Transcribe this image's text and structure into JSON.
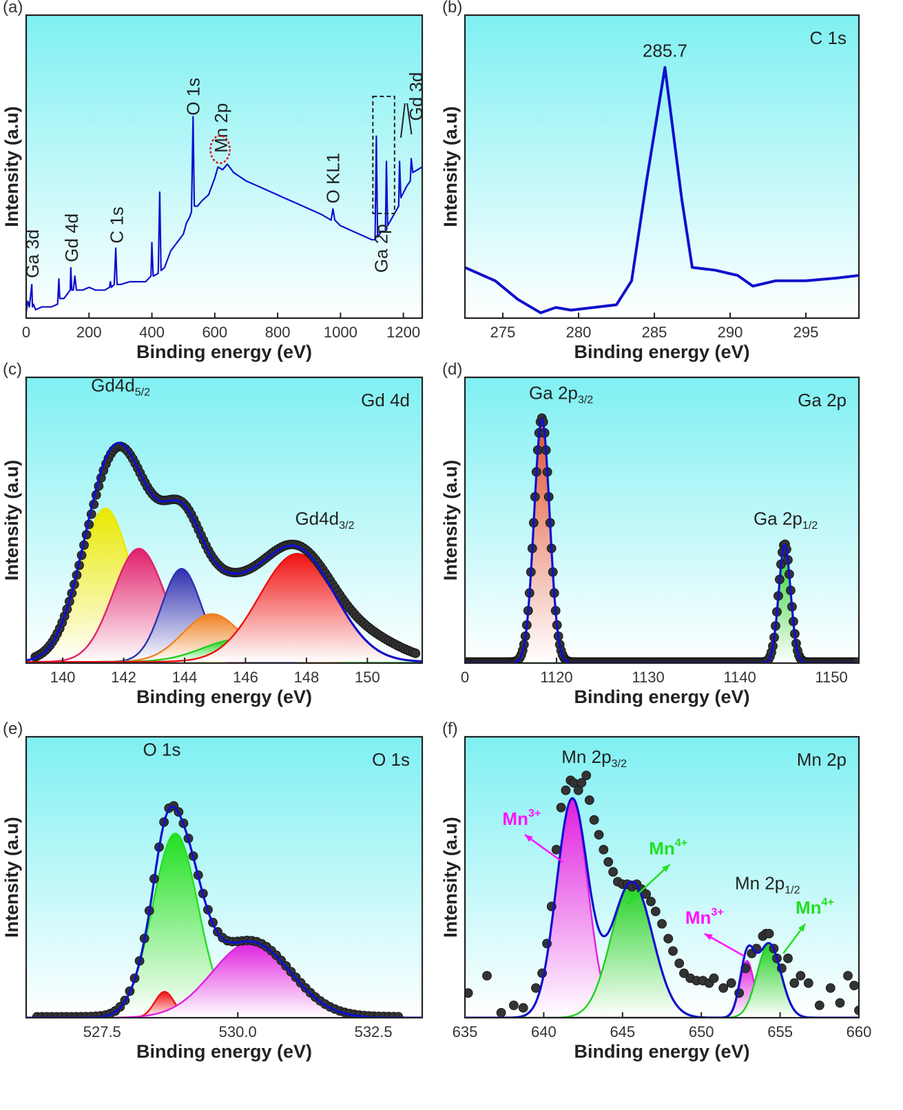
{
  "figure": {
    "description_panels": [
      "a",
      "b",
      "c",
      "d",
      "e",
      "f"
    ]
  },
  "chart_data": [
    {
      "panel": "(a)",
      "type": "line",
      "title": "",
      "xlabel": "Binding energy (eV)",
      "ylabel": "Intensity (a.u)",
      "xlim": [
        0,
        1260
      ],
      "ylim": [
        0,
        1
      ],
      "xticks": [
        0,
        200,
        400,
        600,
        800,
        1000,
        1200
      ],
      "xtick_labels": [
        "0",
        "200",
        "400",
        "600",
        "800",
        "1000",
        "1200"
      ],
      "grid": false,
      "series": [
        {
          "color": "#1010cc",
          "points": [
            [
              0,
              0.02
            ],
            [
              5,
              0.06
            ],
            [
              10,
              0.04
            ],
            [
              18,
              0.12
            ],
            [
              20,
              0.04
            ],
            [
              23,
              0.05
            ],
            [
              30,
              0.03
            ],
            [
              50,
              0.04
            ],
            [
              80,
              0.04
            ],
            [
              100,
              0.05
            ],
            [
              104,
              0.14
            ],
            [
              107,
              0.07
            ],
            [
              120,
              0.07
            ],
            [
              140,
              0.1
            ],
            [
              142,
              0.18
            ],
            [
              145,
              0.1
            ],
            [
              150,
              0.1
            ],
            [
              155,
              0.15
            ],
            [
              160,
              0.1
            ],
            [
              180,
              0.1
            ],
            [
              200,
              0.11
            ],
            [
              220,
              0.1
            ],
            [
              250,
              0.1
            ],
            [
              265,
              0.11
            ],
            [
              268,
              0.13
            ],
            [
              271,
              0.11
            ],
            [
              280,
              0.12
            ],
            [
              285,
              0.25
            ],
            [
              289,
              0.12
            ],
            [
              300,
              0.12
            ],
            [
              330,
              0.13
            ],
            [
              350,
              0.13
            ],
            [
              380,
              0.13
            ],
            [
              397,
              0.15
            ],
            [
              400,
              0.27
            ],
            [
              404,
              0.15
            ],
            [
              420,
              0.16
            ],
            [
              425,
              0.45
            ],
            [
              429,
              0.17
            ],
            [
              440,
              0.18
            ],
            [
              460,
              0.24
            ],
            [
              480,
              0.27
            ],
            [
              500,
              0.3
            ],
            [
              510,
              0.34
            ],
            [
              520,
              0.36
            ],
            [
              526,
              0.38
            ],
            [
              531,
              0.72
            ],
            [
              535,
              0.4
            ],
            [
              545,
              0.4
            ],
            [
              560,
              0.42
            ],
            [
              580,
              0.44
            ],
            [
              600,
              0.5
            ],
            [
              610,
              0.54
            ],
            [
              625,
              0.53
            ],
            [
              640,
              0.55
            ],
            [
              660,
              0.52
            ],
            [
              700,
              0.49
            ],
            [
              740,
              0.47
            ],
            [
              780,
              0.45
            ],
            [
              820,
              0.43
            ],
            [
              860,
              0.41
            ],
            [
              900,
              0.39
            ],
            [
              940,
              0.37
            ],
            [
              970,
              0.35
            ],
            [
              976,
              0.39
            ],
            [
              982,
              0.35
            ],
            [
              1000,
              0.33
            ],
            [
              1040,
              0.31
            ],
            [
              1080,
              0.29
            ],
            [
              1100,
              0.28
            ],
            [
              1110,
              0.28
            ],
            [
              1114,
              0.65
            ],
            [
              1118,
              0.29
            ],
            [
              1130,
              0.31
            ],
            [
              1143,
              0.31
            ],
            [
              1146,
              0.56
            ],
            [
              1150,
              0.33
            ],
            [
              1170,
              0.37
            ],
            [
              1185,
              0.4
            ],
            [
              1188,
              0.56
            ],
            [
              1192,
              0.43
            ],
            [
              1210,
              0.47
            ],
            [
              1222,
              0.49
            ],
            [
              1225,
              0.57
            ],
            [
              1230,
              0.52
            ],
            [
              1245,
              0.53
            ],
            [
              1260,
              0.54
            ]
          ]
        }
      ],
      "annotations": [
        {
          "text": "Ga 3d",
          "x": 20,
          "y": 0.15,
          "rotate": true
        },
        {
          "text": "Gd 4d",
          "x": 145,
          "y": 0.21,
          "rotate": true
        },
        {
          "text": "C 1s",
          "x": 288,
          "y": 0.28,
          "rotate": true
        },
        {
          "text": "O 1s",
          "x": 531,
          "y": 0.76,
          "rotate": true
        },
        {
          "text": "Mn 2p",
          "x": 620,
          "y": 0.62,
          "rotate": true
        },
        {
          "text": "O KL1",
          "x": 976,
          "y": 0.43,
          "rotate": true
        },
        {
          "text": "Ga 2p",
          "x": 1130,
          "y": 0.17,
          "rotate": true
        },
        {
          "text": "Gd 3d",
          "x": 1240,
          "y": 0.74,
          "rotate": true
        }
      ]
    },
    {
      "panel": "(b)",
      "type": "line",
      "title": "C 1s",
      "xlabel": "Binding energy (eV)",
      "ylabel": "Intensity (a.u)",
      "xlim": [
        272.5,
        298.5
      ],
      "ylim": [
        0,
        1
      ],
      "xticks": [
        275,
        280,
        285,
        290,
        295
      ],
      "xtick_labels": [
        "275",
        "280",
        "285",
        "290",
        "295"
      ],
      "grid": false,
      "series": [
        {
          "color": "#1010cc",
          "points": [
            [
              272.5,
              0.19
            ],
            [
              274.5,
              0.14
            ],
            [
              276,
              0.07
            ],
            [
              277.5,
              0.02
            ],
            [
              278.5,
              0.04
            ],
            [
              279.5,
              0.03
            ],
            [
              281,
              0.04
            ],
            [
              282.5,
              0.05
            ],
            [
              283.5,
              0.14
            ],
            [
              284.5,
              0.52
            ],
            [
              285.7,
              0.94
            ],
            [
              286.8,
              0.45
            ],
            [
              287.5,
              0.19
            ],
            [
              289,
              0.18
            ],
            [
              290.5,
              0.16
            ],
            [
              291.5,
              0.12
            ],
            [
              293,
              0.14
            ],
            [
              295,
              0.14
            ],
            [
              297,
              0.15
            ],
            [
              298.5,
              0.16
            ]
          ]
        }
      ],
      "annotations": [
        {
          "text": "285.7",
          "x": 285.7,
          "y": 0.98
        }
      ]
    },
    {
      "panel": "(c)",
      "type": "area",
      "title": "Gd 4d",
      "xlabel": "Binding energy (eV)",
      "ylabel": "Intensity (a.u)",
      "xlim": [
        138.8,
        151.8
      ],
      "ylim": [
        0,
        1
      ],
      "xticks": [
        140,
        142,
        144,
        146,
        148,
        150
      ],
      "xtick_labels": [
        "140",
        "142",
        "144",
        "146",
        "148",
        "150"
      ],
      "grid": false,
      "peaks": [
        {
          "color": "#e8e800",
          "center": 141.4,
          "amp": 0.61,
          "sigma": 0.85
        },
        {
          "color": "#e0206a",
          "center": 142.5,
          "amp": 0.45,
          "sigma": 0.85
        },
        {
          "color": "#3030b0",
          "center": 143.9,
          "amp": 0.37,
          "sigma": 0.65
        },
        {
          "color": "#f08020",
          "center": 144.9,
          "amp": 0.19,
          "sigma": 0.95
        },
        {
          "color": "#20d020",
          "center": 145.8,
          "amp": 0.09,
          "sigma": 1.2
        },
        {
          "color": "#f01010",
          "center": 147.7,
          "amp": 0.43,
          "sigma": 1.25
        }
      ],
      "fit": {
        "color": "#1010cc"
      },
      "data_points": {
        "color": "#333333",
        "x_range": [
          139.1,
          151.6
        ],
        "step": 0.08
      },
      "annotations": [
        {
          "text": "Gd4d",
          "sub": "5/2",
          "x": 141.9,
          "y": 1.08
        },
        {
          "text": "Gd4d",
          "sub": "3/2",
          "x": 148.6,
          "y": 0.55
        }
      ]
    },
    {
      "panel": "(d)",
      "type": "area",
      "title": "Ga 2p",
      "xlabel": "Binding energy (eV)",
      "ylabel": "Intensity (a.u)",
      "xlim": [
        1110,
        1153
      ],
      "ylim": [
        0,
        1
      ],
      "xticks": [
        1120,
        1130,
        1140,
        1150
      ],
      "xtick_labels": [
        "1120",
        "1130",
        "1140",
        "1150"
      ],
      "extra_tick_label": "0",
      "grid": false,
      "peaks": [
        {
          "color": "#e05030",
          "center": 1118.4,
          "amp": 0.97,
          "sigma": 0.85
        },
        {
          "color": "#20d020",
          "center": 1144.9,
          "amp": 0.47,
          "sigma": 0.65
        }
      ],
      "fit": {
        "color": "#1010cc"
      },
      "data_points": {
        "color": "#333333",
        "x_range": [
          1110,
          1153
        ],
        "step": 0.15
      },
      "annotations": [
        {
          "text": "Ga 2p",
          "sub": "3/2",
          "x": 1120.5,
          "y": 1.05
        },
        {
          "text": "Ga 2p",
          "sub": "1/2",
          "x": 1145,
          "y": 0.55
        }
      ]
    },
    {
      "panel": "(e)",
      "type": "area",
      "title": "O 1s",
      "xlabel": "Binding energy (eV)",
      "ylabel": "Intensity (a.u)",
      "xlim": [
        526.1,
        533.4
      ],
      "ylim": [
        0,
        1
      ],
      "xticks": [
        527.5,
        530.0,
        532.5
      ],
      "xtick_labels": [
        "527.5",
        "530.0",
        "532.5"
      ],
      "grid": false,
      "peaks": [
        {
          "color": "#20e020",
          "center": 528.85,
          "amp": 0.745,
          "sigma": 0.42
        },
        {
          "color": "#f01010",
          "center": 528.65,
          "amp": 0.105,
          "sigma": 0.18
        },
        {
          "color": "#e020e0",
          "center": 530.25,
          "amp": 0.305,
          "sigma": 0.72
        }
      ],
      "fit": {
        "color": "#1010cc"
      },
      "data_points": {
        "color": "#333333",
        "x_range": [
          526.3,
          533.0
        ],
        "step": 0.09
      },
      "annotations": [
        {
          "text": "O 1s",
          "x": 528.6,
          "y": 1.06
        }
      ]
    },
    {
      "panel": "(f)",
      "type": "area",
      "title": "Mn 2p",
      "xlabel": "Binding energy (eV)",
      "ylabel": "Intensity (a.u)",
      "xlim": [
        635,
        660
      ],
      "ylim": [
        0,
        1
      ],
      "xticks": [
        635,
        640,
        645,
        650,
        655,
        660
      ],
      "xtick_labels": [
        "635",
        "640",
        "645",
        "650",
        "655",
        "660"
      ],
      "grid": false,
      "peaks": [
        {
          "color": "#e020e0",
          "center": 641.8,
          "amp": 0.88,
          "sigma": 1.0
        },
        {
          "color": "#20d020",
          "center": 645.6,
          "amp": 0.55,
          "sigma": 1.3
        },
        {
          "color": "#e020e0",
          "center": 652.9,
          "amp": 0.23,
          "sigma": 0.45
        },
        {
          "color": "#20d020",
          "center": 654.3,
          "amp": 0.3,
          "sigma": 0.75
        }
      ],
      "fit": {
        "color": "#1010cc"
      },
      "data_points": {
        "color": "#333333",
        "points": [
          [
            635.2,
            0.1
          ],
          [
            636.4,
            0.17
          ],
          [
            637.3,
            0.02
          ],
          [
            638.1,
            0.05
          ],
          [
            638.7,
            0.04
          ],
          [
            639.5,
            0.12
          ],
          [
            639.9,
            0.18
          ],
          [
            640.2,
            0.3
          ],
          [
            640.5,
            0.45
          ],
          [
            640.8,
            0.68
          ],
          [
            641.1,
            0.85
          ],
          [
            641.4,
            0.92
          ],
          [
            641.7,
            0.96
          ],
          [
            641.9,
            0.95
          ],
          [
            642.2,
            0.92
          ],
          [
            642.4,
            0.95
          ],
          [
            642.7,
            0.98
          ],
          [
            642.9,
            0.88
          ],
          [
            643.2,
            0.8
          ],
          [
            643.5,
            0.74
          ],
          [
            643.8,
            0.68
          ],
          [
            644.1,
            0.63
          ],
          [
            644.4,
            0.59
          ],
          [
            644.7,
            0.55
          ],
          [
            645.0,
            0.54
          ],
          [
            645.3,
            0.54
          ],
          [
            645.6,
            0.53
          ],
          [
            645.9,
            0.54
          ],
          [
            646.2,
            0.52
          ],
          [
            646.5,
            0.5
          ],
          [
            646.8,
            0.47
          ],
          [
            647.1,
            0.43
          ],
          [
            647.5,
            0.38
          ],
          [
            647.9,
            0.32
          ],
          [
            648.2,
            0.27
          ],
          [
            648.6,
            0.22
          ],
          [
            648.9,
            0.18
          ],
          [
            649.3,
            0.16
          ],
          [
            649.7,
            0.15
          ],
          [
            650.1,
            0.15
          ],
          [
            650.5,
            0.14
          ],
          [
            650.8,
            0.16
          ],
          [
            651.4,
            0.12
          ],
          [
            651.9,
            0.14
          ],
          [
            652.4,
            0.1
          ],
          [
            652.8,
            0.2
          ],
          [
            653.2,
            0.26
          ],
          [
            653.5,
            0.28
          ],
          [
            653.9,
            0.33
          ],
          [
            654.1,
            0.34
          ],
          [
            654.3,
            0.34
          ],
          [
            654.6,
            0.28
          ],
          [
            654.8,
            0.24
          ],
          [
            655.1,
            0.2
          ],
          [
            655.5,
            0.24
          ],
          [
            655.9,
            0.14
          ],
          [
            656.3,
            0.17
          ],
          [
            656.8,
            0.14
          ],
          [
            657.5,
            0.05
          ],
          [
            658.2,
            0.12
          ],
          [
            658.8,
            0.06
          ],
          [
            659.3,
            0.17
          ],
          [
            659.7,
            0.13
          ],
          [
            660,
            0.03
          ]
        ]
      },
      "annotations": [
        {
          "text": "Mn 2p",
          "sub": "3/2",
          "x": 643.2,
          "y": 1.03
        },
        {
          "text": "Mn 2p",
          "sub": "1/2",
          "x": 654.2,
          "y": 0.52
        },
        {
          "text": "Mn",
          "sup": "3+",
          "x": 638.6,
          "y": 0.78,
          "color": "#ff10ff",
          "bold": true
        },
        {
          "text": "Mn",
          "sup": "4+",
          "x": 647.9,
          "y": 0.66,
          "color": "#20e020",
          "bold": true
        },
        {
          "text": "Mn",
          "sup": "3+",
          "x": 650.2,
          "y": 0.38,
          "color": "#ff10ff",
          "bold": true
        },
        {
          "text": "Mn",
          "sup": "4+",
          "x": 657.2,
          "y": 0.42,
          "color": "#20e020",
          "bold": true
        }
      ]
    }
  ],
  "colors": {
    "bg_top": "#7ff0f2",
    "bg_bottom": "#ffffff",
    "fit": "#1010cc",
    "dot": "#333333"
  }
}
